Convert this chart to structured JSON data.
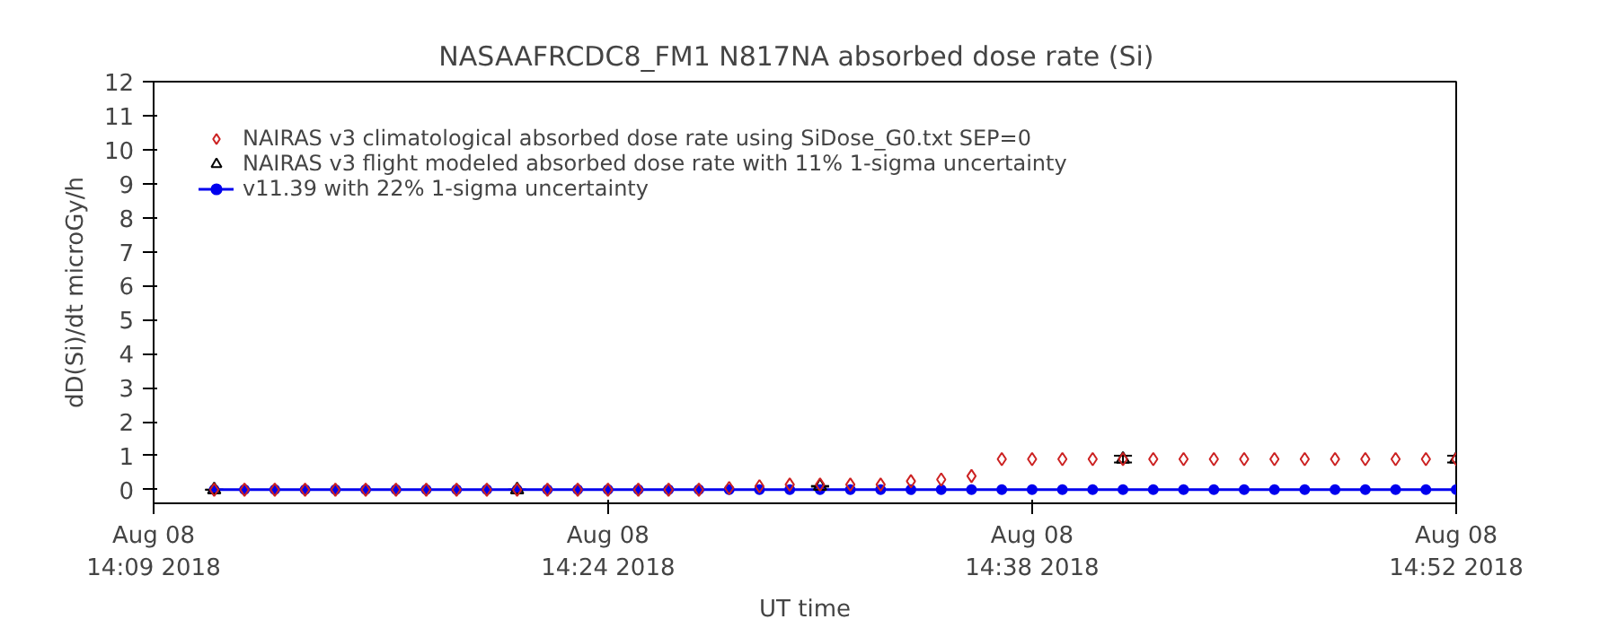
{
  "chart_data": {
    "type": "scatter",
    "title": "NASAAFRCDC8_FM1   N817NA absorbed dose rate (Si)",
    "xlabel": "UT time",
    "ylabel": "dD(Si)/dt microGy/h",
    "x": [
      "2018-08-08T14:11",
      "2018-08-08T14:12",
      "2018-08-08T14:13",
      "2018-08-08T14:14",
      "2018-08-08T14:15",
      "2018-08-08T14:16",
      "2018-08-08T14:17",
      "2018-08-08T14:18",
      "2018-08-08T14:19",
      "2018-08-08T14:20",
      "2018-08-08T14:21",
      "2018-08-08T14:22",
      "2018-08-08T14:23",
      "2018-08-08T14:24",
      "2018-08-08T14:25",
      "2018-08-08T14:26",
      "2018-08-08T14:27",
      "2018-08-08T14:28",
      "2018-08-08T14:29",
      "2018-08-08T14:30",
      "2018-08-08T14:31",
      "2018-08-08T14:32",
      "2018-08-08T14:33",
      "2018-08-08T14:34",
      "2018-08-08T14:35",
      "2018-08-08T14:36",
      "2018-08-08T14:37",
      "2018-08-08T14:38",
      "2018-08-08T14:39",
      "2018-08-08T14:40",
      "2018-08-08T14:41",
      "2018-08-08T14:42",
      "2018-08-08T14:43",
      "2018-08-08T14:44",
      "2018-08-08T14:45",
      "2018-08-08T14:46",
      "2018-08-08T14:47",
      "2018-08-08T14:48",
      "2018-08-08T14:49",
      "2018-08-08T14:50",
      "2018-08-08T14:51",
      "2018-08-08T14:52"
    ],
    "series": [
      {
        "name": "NAIRAS v3 climatological absorbed dose rate using SiDose_G0.txt SEP=0",
        "color": "#cc2222",
        "marker": "diamond",
        "values": [
          0,
          0,
          0,
          0,
          0,
          0,
          0,
          0,
          0,
          0,
          0,
          0,
          0,
          0,
          0,
          0,
          0,
          0.05,
          0.1,
          0.15,
          0.15,
          0.15,
          0.15,
          0.25,
          0.3,
          0.4,
          0.9,
          0.9,
          0.9,
          0.9,
          0.9,
          0.9,
          0.9,
          0.9,
          0.9,
          0.9,
          0.9,
          0.9,
          0.9,
          0.9,
          0.9,
          0.9
        ]
      },
      {
        "name": "NAIRAS v3 flight modeled absorbed dose rate with 11% 1-sigma uncertainty",
        "color": "#000000",
        "marker": "triangle",
        "x": [
          "2018-08-08T14:11",
          "2018-08-08T14:21",
          "2018-08-08T14:31",
          "2018-08-08T14:41",
          "2018-08-08T14:52"
        ],
        "values": [
          0,
          0,
          0.1,
          0.9,
          0.9
        ],
        "errors": [
          0,
          0,
          0.01,
          0.1,
          0.1
        ]
      },
      {
        "name": "v11.39 with 22% 1-sigma uncertainty",
        "type": "line",
        "color": "#0000ee",
        "marker": "circle",
        "values": [
          0,
          0,
          0,
          0,
          0,
          0,
          0,
          0,
          0,
          0,
          0,
          0,
          0,
          0,
          0,
          0,
          0,
          0,
          0,
          0,
          0,
          0,
          0,
          0,
          0,
          0,
          0,
          0,
          0,
          0,
          0,
          0,
          0,
          0,
          0,
          0,
          0,
          0,
          0,
          0,
          0,
          0
        ]
      }
    ],
    "xlim": [
      "2018-08-08T14:09",
      "2018-08-08T14:52"
    ],
    "xticks": [
      {
        "value": "2018-08-08T14:09",
        "label": "Aug 08\n14:09 2018"
      },
      {
        "value": "2018-08-08T14:24",
        "label": "Aug 08\n14:24 2018"
      },
      {
        "value": "2018-08-08T14:38",
        "label": "Aug 08\n14:38 2018"
      },
      {
        "value": "2018-08-08T14:52",
        "label": "Aug 08\n14:52 2018"
      }
    ],
    "ylim": [
      -0.4,
      12
    ],
    "yticks": [
      0,
      1,
      2,
      3,
      4,
      5,
      6,
      7,
      8,
      9,
      10,
      11,
      12
    ],
    "grid": false,
    "legend": "top left"
  }
}
